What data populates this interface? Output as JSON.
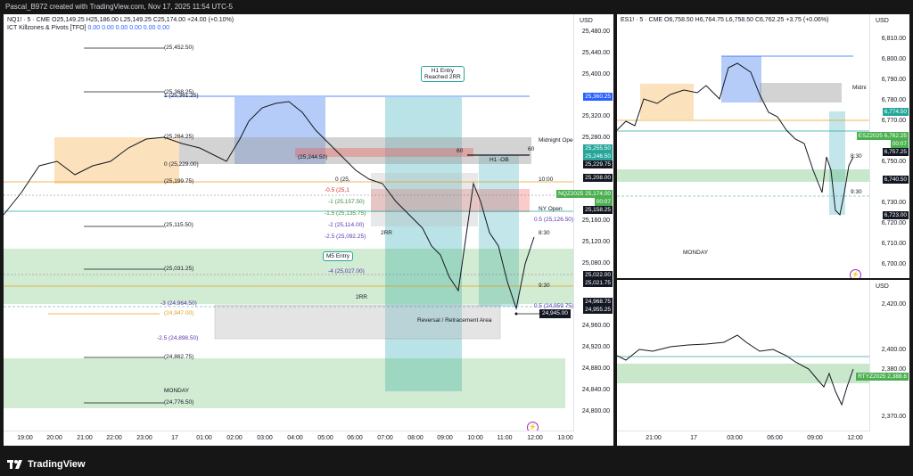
{
  "header": {
    "text": "Pascal_B972 created with TradingView.com, Nov 17, 2025 11:54 UTC-5"
  },
  "left_chart": {
    "symbol_line": "NQ1! · 5 · CME  O25,149.25  H25,186.00  L25,149.25  C25,174.00  +24.00 (+0.10%)",
    "indicator_name": "ICT Killzones & Pivots [TFO]",
    "indicator_values": "0.00  0.00  0.00  0.00  0.00  0.00",
    "currency": "USD",
    "price_ticks": [
      "25,480.00",
      "25,440.00",
      "25,400.00",
      "25,360.00",
      "25,320.00",
      "25,280.00",
      "25,240.00",
      "25,200.00",
      "25,160.00",
      "25,120.00",
      "25,080.00",
      "25,040.00",
      "25,000.00",
      "24,960.00",
      "24,920.00",
      "24,880.00",
      "24,840.00",
      "24,800.00",
      "24,760.00"
    ],
    "time_ticks": [
      "19:00",
      "20:00",
      "21:00",
      "22:00",
      "23:00",
      "17",
      "01:00",
      "02:00",
      "03:00",
      "04:00",
      "05:00",
      "06:00",
      "07:00",
      "08:00",
      "09:00",
      "10:00",
      "11:00",
      "12:00",
      "13:00"
    ],
    "price_tags": [
      {
        "text": "25,360.25",
        "color": "#2962ff"
      },
      {
        "text": "25,255.50",
        "color": "#26a69a"
      },
      {
        "text": "25,246.50",
        "color": "#26a69a"
      },
      {
        "text": "25,229.75",
        "color": "#131722"
      },
      {
        "text": "25,208.00",
        "color": "#131722"
      },
      {
        "text": "NQZ2025  25,174.00",
        "color": "#4caf50"
      },
      {
        "text": "00:07",
        "color": "#4caf50"
      },
      {
        "text": "25,158.25",
        "color": "#131722"
      },
      {
        "text": "25,022.00",
        "color": "#131722"
      },
      {
        "text": "25,021.75",
        "color": "#131722"
      },
      {
        "text": "24,968.75",
        "color": "#131722"
      },
      {
        "text": "24,955.25",
        "color": "#131722"
      }
    ],
    "annotations": {
      "h1_entry": "H1 Entry\nReached 2RR",
      "m5_entry": "M5 Entry",
      "midnight_open": "Midnight Open",
      "reversal": "Reversal / Retracement Area",
      "h1_ob": "H1 -OB",
      "nyopen": "NY Open",
      "monday": "MONDAY",
      "price_marker": "24,945.00",
      "t10": "10:00",
      "t830": "8:30",
      "t930": "9:30",
      "sixty1": "60",
      "sixty2": "60",
      "rr1": "2RR",
      "rr2": "2RR"
    },
    "fib_labels": [
      "(25,452.50)",
      "(25,368.25)",
      "1 (25,361.25)",
      "(25,284.25)",
      "(25,244.50)",
      "0 (25,229.00)",
      "(25,199.75)",
      "0 (25,",
      "-0.5 (25,1",
      "-1 (25,157.50)",
      "-1.5 (25,135.75)",
      "-2 (25,114.00)",
      "-2.5 (25,092.25)",
      "(25,115.50)",
      "(25,031.25)",
      "-4 (25,027.00)",
      "-3 (24,964.50)",
      "(24,947.00)",
      "-2.5 (24,898.50)",
      "(24,862.75)",
      "(24,776.50)",
      "0.5 (25,126.50)",
      "0.5 (24,959.75)"
    ]
  },
  "right_top": {
    "symbol_line": "ES1! · 5 · CME  O6,758.50  H6,764.75  L6,758.50  C6,762.25  +3.75 (+0.06%)",
    "currency": "USD",
    "price_ticks": [
      "6,810.00",
      "6,800.00",
      "6,790.00",
      "6,780.00",
      "6,770.00",
      "6,760.00",
      "6,750.00",
      "6,740.00",
      "6,730.00",
      "6,720.00",
      "6,710.00",
      "6,700.00"
    ],
    "tags": [
      {
        "text": "6,774.50",
        "color": "#26a69a"
      },
      {
        "text": "ESZ2025  6,762.25",
        "color": "#4caf50"
      },
      {
        "text": "00:07",
        "color": "#4caf50"
      },
      {
        "text": "6,757.25",
        "color": "#131722"
      },
      {
        "text": "6,740.50",
        "color": "#131722"
      },
      {
        "text": "6,723.00",
        "color": "#131722"
      }
    ],
    "monday": "MONDAY",
    "midnight": "Midni",
    "t830": "8:30",
    "t930": "9:30"
  },
  "right_bottom": {
    "currency": "USD",
    "price_ticks": [
      "2,420.00",
      "2,400.00",
      "2,380.00",
      "2,370.00"
    ],
    "tag": "RTYZ2025  2,388.6",
    "time_ticks": [
      "21:00",
      "17",
      "03:00",
      "06:00",
      "09:00",
      "12:00"
    ]
  },
  "footer": {
    "brand": "TradingView"
  }
}
